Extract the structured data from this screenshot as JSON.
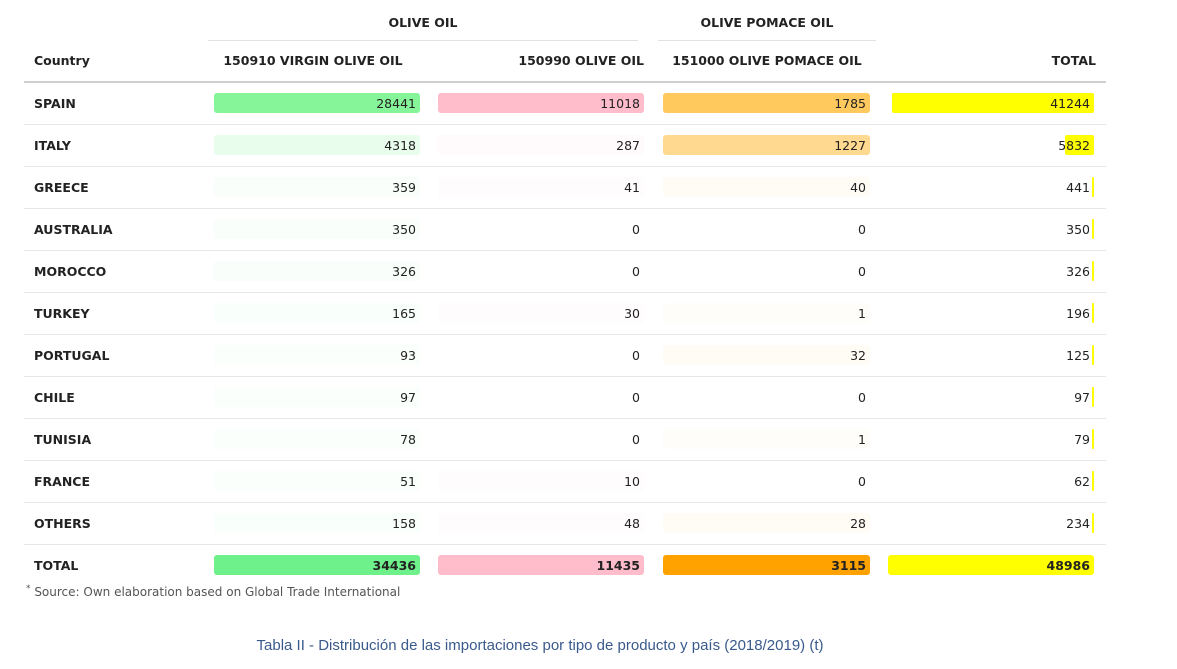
{
  "table": {
    "group_headers": [
      {
        "label": "OLIVE OIL"
      },
      {
        "label": "OLIVE POMACE OIL"
      }
    ],
    "columns": [
      "Country",
      "150910 VIRGIN OLIVE OIL",
      "150990 OLIVE OIL",
      "151000 OLIVE POMACE OIL",
      "TOTAL"
    ]
  },
  "colors": {
    "virgin": "#86f599",
    "olive": "#ffbccb",
    "pomace": "#ffc95e",
    "total": "#ffff00",
    "total_row_virgin": "#6ef08a",
    "total_row_pomace": "#ffa200",
    "header_border": "#cfcfcf",
    "row_border": "#e6e6e6"
  },
  "chart_data": {
    "type": "table",
    "categories": [
      "SPAIN",
      "ITALY",
      "GREECE",
      "AUSTRALIA",
      "MOROCCO",
      "TURKEY",
      "PORTUGAL",
      "CHILE",
      "TUNISIA",
      "FRANCE",
      "OTHERS"
    ],
    "series": [
      {
        "name": "150910 VIRGIN OLIVE OIL",
        "values": [
          28441,
          4318,
          359,
          350,
          326,
          165,
          93,
          97,
          78,
          51,
          158
        ]
      },
      {
        "name": "150990 OLIVE OIL",
        "values": [
          11018,
          287,
          41,
          0,
          0,
          30,
          0,
          0,
          0,
          10,
          48
        ]
      },
      {
        "name": "151000 OLIVE POMACE OIL",
        "values": [
          1785,
          1227,
          40,
          0,
          0,
          1,
          32,
          0,
          1,
          0,
          28
        ]
      },
      {
        "name": "TOTAL",
        "values": [
          41244,
          5832,
          441,
          350,
          326,
          196,
          125,
          97,
          79,
          62,
          234
        ]
      }
    ],
    "totals": {
      "label": "TOTAL",
      "values": [
        34436,
        11435,
        3115,
        48986
      ]
    }
  },
  "source_note": {
    "marker": "*",
    "text": " Source: Own elaboration based on Global Trade International"
  },
  "caption": "Tabla II - Distribución de las importaciones por tipo de producto y país (2018/2019) (t)"
}
